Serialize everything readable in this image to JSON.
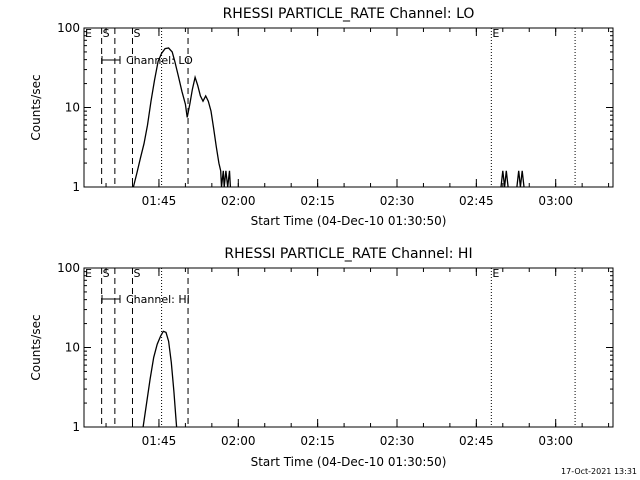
{
  "chart_data": [
    {
      "type": "line",
      "title": "RHESSI PARTICLE_RATE Channel: LO",
      "xlabel": "Start Time (04-Dec-10 01:30:50)",
      "ylabel": "Counts/sec",
      "y_scale": "log",
      "ylim": [
        1,
        100
      ],
      "xlim": [
        "01:30:50",
        "03:10:50"
      ],
      "x_ticks": [
        "01:45",
        "02:00",
        "02:15",
        "02:30",
        "02:45",
        "03:00"
      ],
      "y_ticks": [
        "1",
        "10",
        "100"
      ],
      "legend": "Channel: LO",
      "markers": [
        {
          "label": "E",
          "x": "01:30:50",
          "style": "dashed"
        },
        {
          "label": "S",
          "x": "01:34:10",
          "style": "dashed"
        },
        {
          "label": "",
          "x": "01:36:40",
          "style": "dashed"
        },
        {
          "label": "S",
          "x": "01:40:00",
          "style": "dashed"
        },
        {
          "label": "",
          "x": "01:45:30",
          "style": "dotted"
        },
        {
          "label": "",
          "x": "01:50:30",
          "style": "dashed"
        },
        {
          "label": "E",
          "x": "02:47:50",
          "style": "dotted"
        },
        {
          "label": "",
          "x": "03:03:40",
          "style": "dotted"
        }
      ],
      "series": [
        {
          "name": "Channel: LO",
          "points": [
            [
              "01:40:10",
              1
            ],
            [
              "01:40:50",
              1.5
            ],
            [
              "01:41:30",
              2.3
            ],
            [
              "01:42:10",
              3.5
            ],
            [
              "01:42:50",
              6
            ],
            [
              "01:43:30",
              12
            ],
            [
              "01:44:10",
              22
            ],
            [
              "01:44:50",
              38
            ],
            [
              "01:45:30",
              48
            ],
            [
              "01:46:10",
              55
            ],
            [
              "01:46:50",
              56
            ],
            [
              "01:47:30",
              50
            ],
            [
              "01:48:00",
              38
            ],
            [
              "01:48:40",
              25
            ],
            [
              "01:49:20",
              16
            ],
            [
              "01:50:00",
              11
            ],
            [
              "01:50:20",
              7.5
            ],
            [
              "01:50:50",
              11
            ],
            [
              "01:51:20",
              17
            ],
            [
              "01:51:50",
              24
            ],
            [
              "01:52:20",
              19
            ],
            [
              "01:52:50",
              14
            ],
            [
              "01:53:20",
              12
            ],
            [
              "01:53:50",
              14
            ],
            [
              "01:54:20",
              12
            ],
            [
              "01:54:50",
              9
            ],
            [
              "01:55:20",
              5.5
            ],
            [
              "01:55:50",
              3.2
            ],
            [
              "01:56:20",
              2.0
            ],
            [
              "01:56:40",
              1.6
            ],
            [
              "01:56:50",
              1.0
            ],
            [
              "01:57:10",
              1.6
            ],
            [
              "01:57:20",
              1.0
            ],
            [
              "01:57:40",
              1.6
            ],
            [
              "01:58:00",
              1.0
            ],
            [
              "01:58:20",
              1.6
            ],
            [
              "01:58:30",
              1.0
            ]
          ],
          "extra_segments": [
            [
              [
                "02:49:40",
                1.0
              ],
              [
                "02:50:00",
                1.6
              ],
              [
                "02:50:20",
                1.0
              ],
              [
                "02:50:40",
                1.6
              ],
              [
                "02:51:00",
                1.0
              ]
            ],
            [
              [
                "02:52:40",
                1.0
              ],
              [
                "02:53:00",
                1.6
              ],
              [
                "02:53:20",
                1.0
              ],
              [
                "02:53:40",
                1.6
              ],
              [
                "02:54:00",
                1.0
              ]
            ]
          ]
        }
      ]
    },
    {
      "type": "line",
      "title": "RHESSI PARTICLE_RATE Channel: HI",
      "xlabel": "Start Time (04-Dec-10 01:30:50)",
      "ylabel": "Counts/sec",
      "y_scale": "log",
      "ylim": [
        1,
        100
      ],
      "xlim": [
        "01:30:50",
        "03:10:50"
      ],
      "x_ticks": [
        "01:45",
        "02:00",
        "02:15",
        "02:30",
        "02:45",
        "03:00"
      ],
      "y_ticks": [
        "1",
        "10",
        "100"
      ],
      "legend": "Channel: HI",
      "markers": [
        {
          "label": "E",
          "x": "01:30:50",
          "style": "dashed"
        },
        {
          "label": "S",
          "x": "01:34:10",
          "style": "dashed"
        },
        {
          "label": "",
          "x": "01:36:40",
          "style": "dashed"
        },
        {
          "label": "S",
          "x": "01:40:00",
          "style": "dashed"
        },
        {
          "label": "",
          "x": "01:45:30",
          "style": "dotted"
        },
        {
          "label": "",
          "x": "01:50:30",
          "style": "dashed"
        },
        {
          "label": "E",
          "x": "02:47:50",
          "style": "dotted"
        },
        {
          "label": "",
          "x": "03:03:40",
          "style": "dotted"
        }
      ],
      "series": [
        {
          "name": "Channel: HI",
          "points": [
            [
              "01:42:00",
              1
            ],
            [
              "01:42:40",
              2.0
            ],
            [
              "01:43:20",
              4.0
            ],
            [
              "01:44:00",
              7.5
            ],
            [
              "01:44:40",
              11
            ],
            [
              "01:45:20",
              14
            ],
            [
              "01:45:50",
              16
            ],
            [
              "01:46:20",
              15.5
            ],
            [
              "01:46:50",
              12
            ],
            [
              "01:47:20",
              6.5
            ],
            [
              "01:47:50",
              2.8
            ],
            [
              "01:48:10",
              1.4
            ],
            [
              "01:48:20",
              1.0
            ]
          ],
          "extra_segments": []
        }
      ]
    }
  ],
  "footer": {
    "timestamp": "17-Oct-2021 13:31"
  }
}
